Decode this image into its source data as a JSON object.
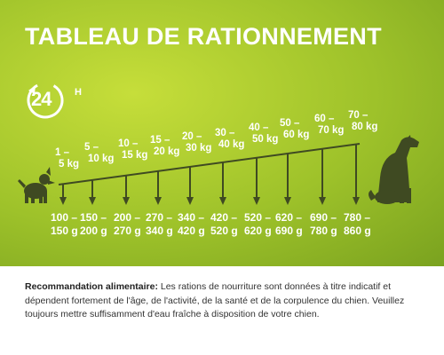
{
  "title": "TABLEAU DE RATIONNEMENT",
  "badge": {
    "number": "24",
    "unit": "H"
  },
  "weights": [
    {
      "line1": "1 –",
      "line2": "5 kg"
    },
    {
      "line1": "5 –",
      "line2": "10 kg"
    },
    {
      "line1": "10 –",
      "line2": "15 kg"
    },
    {
      "line1": "15 –",
      "line2": "20 kg"
    },
    {
      "line1": "20 –",
      "line2": "30 kg"
    },
    {
      "line1": "30 –",
      "line2": "40 kg"
    },
    {
      "line1": "40 –",
      "line2": "50 kg"
    },
    {
      "line1": "50 –",
      "line2": "60 kg"
    },
    {
      "line1": "60 –",
      "line2": "70 kg"
    },
    {
      "line1": "70 –",
      "line2": "80 kg"
    }
  ],
  "portions": [
    {
      "line1": "100 –",
      "line2": "150 g"
    },
    {
      "line1": "150 –",
      "line2": "200 g"
    },
    {
      "line1": "200 –",
      "line2": "270 g"
    },
    {
      "line1": "270 –",
      "line2": "340 g"
    },
    {
      "line1": "340 –",
      "line2": "420 g"
    },
    {
      "line1": "420 –",
      "line2": "520 g"
    },
    {
      "line1": "520 –",
      "line2": "620 g"
    },
    {
      "line1": "620 –",
      "line2": "690 g"
    },
    {
      "line1": "690 –",
      "line2": "780 g"
    },
    {
      "line1": "780 –",
      "line2": "860 g"
    }
  ],
  "recommendation": {
    "label": "Recommandation alimentaire:",
    "text": "Les rations de nourriture sont données à titre indicatif et dépendent fortement de l'âge, de l'activité, de la santé et de la corpulence du chien. Veuillez toujours mettre suffisamment d'eau fraîche à disposition de votre chien."
  },
  "colors": {
    "background_light": "#c6de3a",
    "background_dark": "#7aa21f",
    "ink": "#3f4a22",
    "text_white": "#ffffff"
  },
  "icons": [
    "clock-24h-icon",
    "small-dog-icon",
    "large-dog-icon",
    "arrow-down-icon"
  ]
}
